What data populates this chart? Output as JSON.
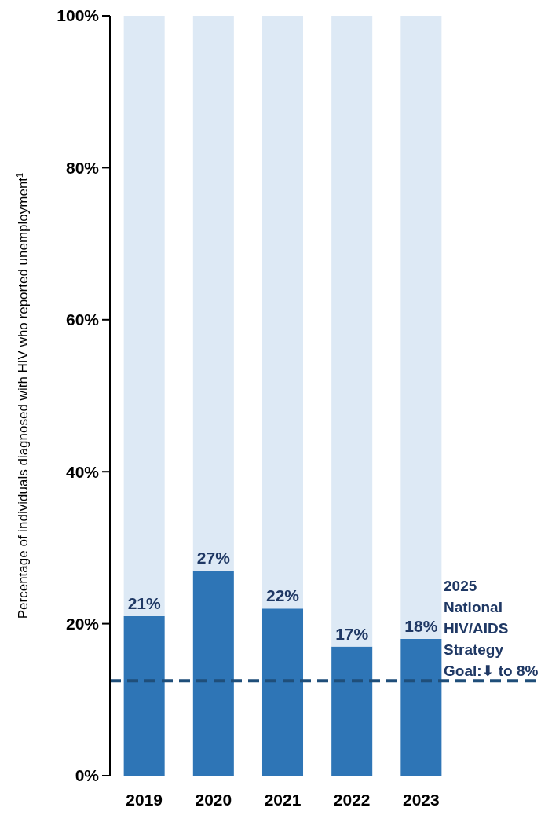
{
  "chart_data": {
    "type": "bar",
    "stacked": true,
    "ylabel": "Percentage of individuals diagnosed with HIV who reported unemployment$^{1}$",
    "categories": [
      "2019",
      "2020",
      "2021",
      "2022",
      "2023"
    ],
    "series": [
      {
        "color": "#2e75b6",
        "values": [
          21,
          27,
          22,
          17,
          18
        ],
        "value_labels": [
          "21%",
          "27%",
          "22%",
          "17%",
          "18%"
        ]
      },
      {
        "color": "#dde9f5",
        "values": [
          79,
          73,
          78,
          83,
          82
        ]
      }
    ],
    "ylim": [
      0,
      100
    ],
    "yticks": [
      {
        "value": 0,
        "label": "0%"
      },
      {
        "value": 20,
        "label": "20%"
      },
      {
        "value": 40,
        "label": "40%"
      },
      {
        "value": 60,
        "label": "60%"
      },
      {
        "value": 80,
        "label": "80%"
      },
      {
        "value": 100,
        "label": "100%"
      }
    ],
    "ref_lines": [
      {
        "axis": "y",
        "value": 12.5,
        "color": "#1f4e79",
        "line_style": "dashed"
      }
    ],
    "annotations": [
      "2025 National HIV/AIDS Strategy Goal:⬇ to 8%"
    ],
    "grid": false
  }
}
